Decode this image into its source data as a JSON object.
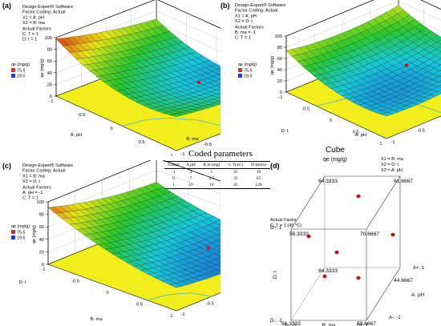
{
  "figure": {
    "software": "Design-Expert® Software",
    "coding": "Factor Coding: Actual",
    "legend_unit": "qe (mg/g)",
    "legend_max": "75.5",
    "legend_min": "19.5",
    "actual_factors": "Actual Factors",
    "actual_factor": "Actual Factor"
  },
  "chart_data": [
    {
      "type": "surface",
      "panel_label": "(a)",
      "x1": "X1 = A: pH",
      "x2": "X2 = B: ma",
      "fixed": [
        "C: T = 1",
        "D: t = 1"
      ],
      "xlabel": "A: pH",
      "ylabel": "B: ma",
      "zlabel": "qe (mg/g)",
      "z_ticks": [
        "0",
        "20",
        "40",
        "60",
        "80",
        "100"
      ],
      "x_ticks": [
        "-1",
        "-0.5",
        "0",
        "0.5",
        "1"
      ],
      "y_ticks": [
        "-1",
        "-0.5",
        "0",
        "0.5",
        "1"
      ]
    },
    {
      "type": "surface",
      "panel_label": "(b)",
      "x1": "X1 = A: pH",
      "x2": "X2 = D: t",
      "fixed": [
        "B: ma = -1",
        "C: T = 1"
      ],
      "xlabel": "A: pH",
      "ylabel": "D: t",
      "zlabel": "qe (mg/g)",
      "z_ticks": [
        "0",
        "20",
        "40",
        "60",
        "80",
        "100"
      ],
      "x_ticks": [
        "-1",
        "-0.5",
        "0",
        "0.5",
        "1"
      ],
      "y_ticks": [
        "-1",
        "-0.5",
        "0",
        "0.5",
        "1"
      ]
    },
    {
      "type": "surface",
      "panel_label": "(c)",
      "x1": "X1 = B: ma",
      "x2": "X2 = D: t",
      "fixed": [
        "A: pH = -1",
        "C: T = 1"
      ],
      "xlabel": "B: ma",
      "ylabel": "D: t",
      "zlabel": "qe (mg/g)",
      "z_ticks": [
        "0",
        "20",
        "40",
        "60",
        "80",
        "100"
      ],
      "x_ticks": [
        "-1",
        "-0.5",
        "0",
        "0.5",
        "1"
      ],
      "y_ticks": [
        "-1",
        "-0.5",
        "0",
        "0.5",
        "1"
      ]
    },
    {
      "type": "cube",
      "panel_label": "(d)",
      "title": "Cube",
      "subtitle": "qe (mg/g)",
      "x1": "X1 = B: ma",
      "x2": "X2 = D: t",
      "x3": "X3 = A: pH",
      "fixed": [
        "C: T = 1 (45 °C)"
      ],
      "axis_x": "B: ma",
      "axis_y": "D: t",
      "axis_z": "A: pH",
      "labels": {
        "b_minus": "B-: -1",
        "b_plus": "B+: 1",
        "d_minus": "D-: -1",
        "d_plus": "D+: 1",
        "a_minus": "A-: -1",
        "a_plus": "A+: 1"
      },
      "corners": {
        "back_top_left": 64.3333,
        "back_top_right": 61.6667,
        "front_top_left": 56.3333,
        "front_top_right": 70.6667,
        "back_bottom_left": 84.3333,
        "back_bottom_right": 44.6667,
        "front_bottom_left": 81.3333,
        "front_bottom_right": 58.6667
      }
    }
  ],
  "coded_table": {
    "title": "Coded parameters",
    "headers": [
      "Coded",
      "A pH",
      "B m (mg)",
      "C T(oC)",
      "D t(min)"
    ],
    "rows": [
      [
        "-1",
        "4",
        "1",
        "25",
        "10"
      ],
      [
        "0",
        "7",
        "5.5",
        "35",
        "65"
      ],
      [
        "1",
        "10",
        "10",
        "45",
        "120"
      ]
    ]
  }
}
